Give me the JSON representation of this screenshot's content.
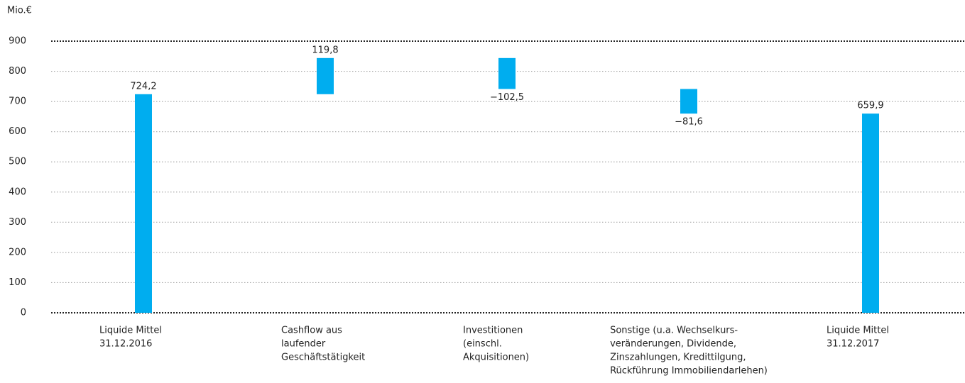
{
  "chart_data": {
    "type": "waterfall",
    "y_label": "Mio.€",
    "categories": [
      [
        "Liquide Mittel",
        "31.12.2016"
      ],
      [
        "Cashflow aus",
        "laufender",
        "Geschäftstätigkeit"
      ],
      [
        "Investitionen",
        "(einschl.",
        "Akquisitionen)"
      ],
      [
        "Sonstige (u.a. Wechselkurs-",
        "veränderungen, Dividende,",
        "Zinszahlungen, Kredittilgung,",
        "Rückführung Immobiliendarlehen)"
      ],
      [
        "Liquide Mittel",
        "31.12.2017"
      ]
    ],
    "measure": [
      "absolute",
      "relative",
      "relative",
      "relative",
      "absolute"
    ],
    "values": [
      724.2,
      119.8,
      -102.5,
      -81.6,
      659.9
    ],
    "value_labels": [
      "724,2",
      "119,8",
      "−102,5",
      "−81,6",
      "659,9"
    ],
    "color": "#00adef",
    "ylim": [
      0,
      900
    ],
    "yticks": [
      0,
      100,
      200,
      300,
      400,
      500,
      600,
      700,
      800,
      900
    ],
    "grid": true
  }
}
